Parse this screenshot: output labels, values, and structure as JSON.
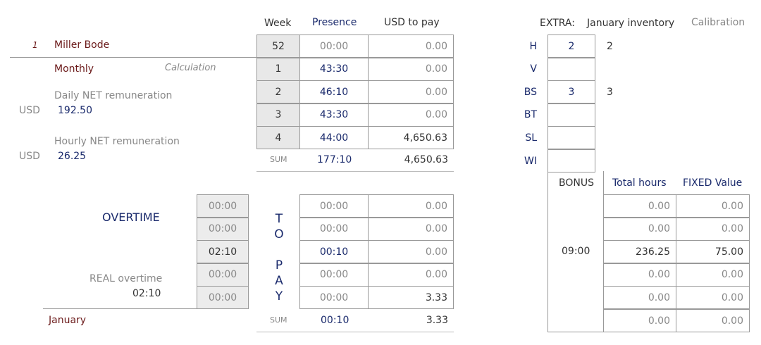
{
  "employee": {
    "index": "1",
    "name": "Miller Bode",
    "type": "Monthly",
    "calc_label": "Calculation",
    "daily_label": "Daily NET remuneration",
    "currency": "USD",
    "daily_value": "192.50",
    "hourly_label": "Hourly NET remuneration",
    "hourly_value": "26.25"
  },
  "weeks_table": {
    "headers": {
      "week": "Week",
      "presence": "Presence",
      "usd": "USD to pay"
    },
    "rows": [
      {
        "week": "52",
        "presence": "00:00",
        "usd": "0.00"
      },
      {
        "week": "1",
        "presence": "43:30",
        "usd": "0.00"
      },
      {
        "week": "2",
        "presence": "46:10",
        "usd": "0.00"
      },
      {
        "week": "3",
        "presence": "43:30",
        "usd": "0.00"
      },
      {
        "week": "4",
        "presence": "44:00",
        "usd": "4,650.63"
      }
    ],
    "sum_label": "SUM",
    "sum_presence": "177:10",
    "sum_usd": "4,650.63"
  },
  "overtime": {
    "label": "OVERTIME",
    "real_label": "REAL overtime",
    "real_value": "02:10",
    "cells": [
      "00:00",
      "00:00",
      "02:10",
      "00:00",
      "00:00"
    ]
  },
  "to_pay": {
    "label": "TO PAY",
    "rows": [
      {
        "time": "00:00",
        "amount": "0.00"
      },
      {
        "time": "00:00",
        "amount": "0.00"
      },
      {
        "time": "00:10",
        "amount": "0.00"
      },
      {
        "time": "00:00",
        "amount": "0.00"
      },
      {
        "time": "00:00",
        "amount": "3.33"
      }
    ],
    "sum_label": "SUM",
    "sum_time": "00:10",
    "sum_amount": "3.33"
  },
  "month_label": "January",
  "extra": {
    "label": "EXTRA:",
    "inventory_label": "January inventory",
    "calibration_label": "Calibration",
    "rows": [
      {
        "code": "H",
        "value": "2",
        "cal": "2"
      },
      {
        "code": "V",
        "value": "",
        "cal": ""
      },
      {
        "code": "BS",
        "value": "3",
        "cal": "3"
      },
      {
        "code": "BT",
        "value": "",
        "cal": ""
      },
      {
        "code": "SL",
        "value": "",
        "cal": ""
      },
      {
        "code": "WI",
        "value": "",
        "cal": ""
      }
    ]
  },
  "bonus": {
    "label": "BONUS",
    "total_hours_label": "Total hours",
    "fixed_value_label": "FIXED Value",
    "hours": "09:00",
    "rows": [
      {
        "total": "0.00",
        "fixed": "0.00"
      },
      {
        "total": "0.00",
        "fixed": "0.00"
      },
      {
        "total": "236.25",
        "fixed": "75.00"
      },
      {
        "total": "0.00",
        "fixed": "0.00"
      },
      {
        "total": "0.00",
        "fixed": "0.00"
      },
      {
        "total": "0.00",
        "fixed": "0.00"
      }
    ]
  }
}
